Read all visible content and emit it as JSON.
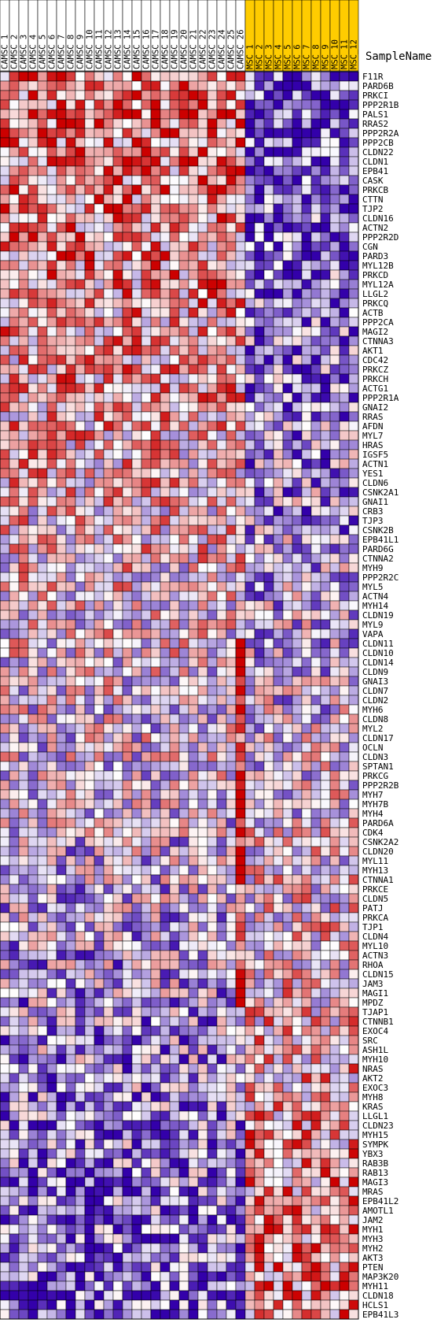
{
  "chart_data": {
    "type": "heatmap",
    "corner_label": "SampleName",
    "columns": [
      {
        "label": "CAMSC_1",
        "group": "CAMSC"
      },
      {
        "label": "CAMSC_2",
        "group": "CAMSC"
      },
      {
        "label": "CAMSC_3",
        "group": "CAMSC"
      },
      {
        "label": "CAMSC_4",
        "group": "CAMSC"
      },
      {
        "label": "CAMSC_5",
        "group": "CAMSC"
      },
      {
        "label": "CAMSC_6",
        "group": "CAMSC"
      },
      {
        "label": "CAMSC_7",
        "group": "CAMSC"
      },
      {
        "label": "CAMSC_8",
        "group": "CAMSC"
      },
      {
        "label": "CAMSC_9",
        "group": "CAMSC"
      },
      {
        "label": "CAMSC_10",
        "group": "CAMSC"
      },
      {
        "label": "CAMSC_11",
        "group": "CAMSC"
      },
      {
        "label": "CAMSC_12",
        "group": "CAMSC"
      },
      {
        "label": "CAMSC_13",
        "group": "CAMSC"
      },
      {
        "label": "CAMSC_14",
        "group": "CAMSC"
      },
      {
        "label": "CAMSC_15",
        "group": "CAMSC"
      },
      {
        "label": "CAMSC_16",
        "group": "CAMSC"
      },
      {
        "label": "CAMSC_17",
        "group": "CAMSC"
      },
      {
        "label": "CAMSC_18",
        "group": "CAMSC"
      },
      {
        "label": "CAMSC_19",
        "group": "CAMSC"
      },
      {
        "label": "CAMSC_20",
        "group": "CAMSC"
      },
      {
        "label": "CAMSC_21",
        "group": "CAMSC"
      },
      {
        "label": "CAMSC_22",
        "group": "CAMSC"
      },
      {
        "label": "CAMSC_23",
        "group": "CAMSC"
      },
      {
        "label": "CAMSC_24",
        "group": "CAMSC"
      },
      {
        "label": "CAMSC_25",
        "group": "CAMSC"
      },
      {
        "label": "CAMSC_26",
        "group": "CAMSC"
      },
      {
        "label": "MSC_1",
        "group": "MSC"
      },
      {
        "label": "MSC_2",
        "group": "MSC"
      },
      {
        "label": "MSC_3",
        "group": "MSC"
      },
      {
        "label": "MSC_4",
        "group": "MSC"
      },
      {
        "label": "MSC_5",
        "group": "MSC"
      },
      {
        "label": "MSC_6",
        "group": "MSC"
      },
      {
        "label": "MSC_7",
        "group": "MSC"
      },
      {
        "label": "MSC_8",
        "group": "MSC"
      },
      {
        "label": "MSC_9",
        "group": "MSC"
      },
      {
        "label": "MSC_10",
        "group": "MSC"
      },
      {
        "label": "MSC_11",
        "group": "MSC"
      },
      {
        "label": "MSC_12",
        "group": "MSC"
      }
    ],
    "rows": [
      "F11R",
      "PARD6B",
      "PRKCI",
      "PPP2R1B",
      "PALS1",
      "RRAS2",
      "PPP2R2A",
      "PPP2CB",
      "CLDN22",
      "CLDN1",
      "EPB41",
      "CASK",
      "PRKCB",
      "CTTN",
      "TJP2",
      "CLDN16",
      "ACTN2",
      "PPP2R2D",
      "CGN",
      "PARD3",
      "MYL12B",
      "PRKCD",
      "MYL12A",
      "LLGL2",
      "PRKCQ",
      "ACTB",
      "PPP2CA",
      "MAGI2",
      "CTNNA3",
      "AKT1",
      "CDC42",
      "PRKCZ",
      "PRKCH",
      "ACTG1",
      "PPP2R1A",
      "GNAI2",
      "RRAS",
      "AFDN",
      "MYL7",
      "HRAS",
      "IGSF5",
      "ACTN1",
      "YES1",
      "CLDN6",
      "CSNK2A1",
      "GNAI1",
      "CRB3",
      "TJP3",
      "CSNK2B",
      "EPB41L1",
      "PARD6G",
      "CTNNA2",
      "MYH9",
      "PPP2R2C",
      "MYL5",
      "ACTN4",
      "MYH14",
      "CLDN19",
      "MYL9",
      "VAPA",
      "CLDN11",
      "CLDN10",
      "CLDN14",
      "CLDN9",
      "GNAI3",
      "CLDN7",
      "CLDN2",
      "MYH6",
      "CLDN8",
      "MYL2",
      "CLDN17",
      "OCLN",
      "CLDN3",
      "SPTAN1",
      "PRKCG",
      "PPP2R2B",
      "MYH7",
      "MYH7B",
      "MYH4",
      "PARD6A",
      "CDK4",
      "CSNK2A2",
      "CLDN20",
      "MYL11",
      "MYH13",
      "CTNNA1",
      "PRKCE",
      "CLDN5",
      "PATJ",
      "PRKCA",
      "TJP1",
      "CLDN4",
      "MYL10",
      "ACTN3",
      "RHOA",
      "CLDN15",
      "JAM3",
      "MAGI1",
      "MPDZ",
      "TJAP1",
      "CTNNB1",
      "EXOC4",
      "SRC",
      "ASH1L",
      "MYH10",
      "NRAS",
      "AKT2",
      "EXOC3",
      "MYH8",
      "KRAS",
      "LLGL1",
      "CLDN23",
      "MYH15",
      "SYMPK",
      "YBX3",
      "RAB3B",
      "RAB13",
      "MAGI3",
      "MRAS",
      "EPB41L2",
      "AMOTL1",
      "JAM2",
      "MYH1",
      "MYH3",
      "MYH2",
      "AKT3",
      "PTEN",
      "MAP3K20",
      "MYH11",
      "CLDN18",
      "HCLS1",
      "EPB41L3"
    ],
    "value_range": [
      -3,
      3
    ],
    "colors": {
      "low": "#3300aa",
      "high": "#cc0000",
      "mid": "#ffffff",
      "header_camsc": "#ffffff",
      "header_msc": "#ffcc00",
      "grid": "#000000"
    }
  }
}
